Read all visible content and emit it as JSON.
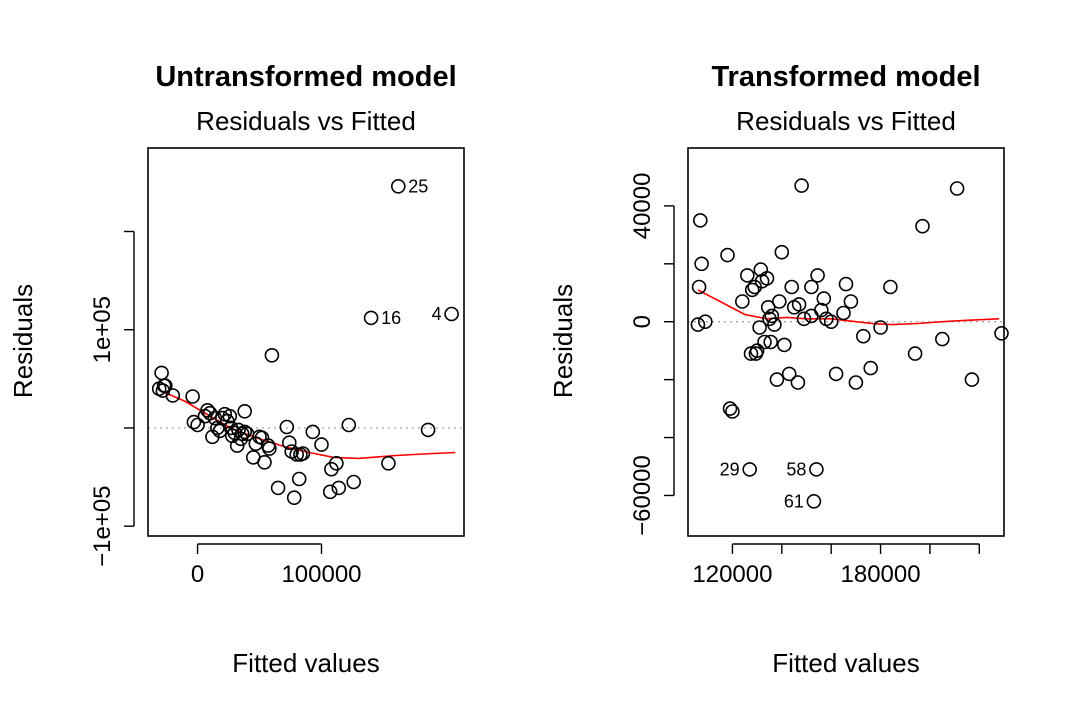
{
  "chart_data": [
    {
      "type": "scatter",
      "title": "Untransformed model",
      "subtitle": "Residuals vs Fitted",
      "xlabel": "Fitted values",
      "ylabel": "Residuals",
      "xlim": [
        -40000,
        215000
      ],
      "ylim": [
        -110000,
        285000
      ],
      "x_ticks": [
        0,
        100000
      ],
      "x_tick_labels": [
        "0",
        "100000"
      ],
      "y_ticks": [
        -100000,
        0,
        100000,
        200000
      ],
      "y_tick_labels": [
        "−1e+05",
        "",
        "1e+05",
        ""
      ],
      "zero_reference": 0,
      "smooth_color": "#ff0000",
      "smooth": {
        "x": [
          -30000,
          -10000,
          10000,
          30000,
          50000,
          70000,
          90000,
          110000,
          130000,
          160000,
          190000,
          208000
        ],
        "y": [
          38000,
          27000,
          12000,
          -2000,
          -11000,
          -19000,
          -25000,
          -30000,
          -31000,
          -28000,
          -26000,
          -25000
        ]
      },
      "points": {
        "x": [
          -31000,
          -29000,
          -28000,
          -27000,
          -26000,
          -20000,
          -4000,
          -3000,
          0,
          6000,
          8000,
          10000,
          12000,
          14000,
          16000,
          18000,
          20000,
          22000,
          24000,
          26000,
          27000,
          28000,
          30000,
          32000,
          33000,
          35000,
          36000,
          38000,
          38000,
          40000,
          45000,
          47000,
          50000,
          52000,
          54000,
          57000,
          58000,
          60000,
          65000,
          72000,
          74000,
          76000,
          78000,
          80000,
          82000,
          83000,
          85000,
          93000,
          100000,
          107000,
          108000,
          112000,
          114000,
          122000,
          126000,
          140000,
          154000,
          162000,
          186000,
          205000
        ],
        "y": [
          40000,
          56000,
          38000,
          43000,
          43000,
          33000,
          32000,
          6000,
          3000,
          12000,
          18000,
          15000,
          -9000,
          10000,
          0,
          -3000,
          10000,
          14000,
          7000,
          12000,
          0,
          -8000,
          -5000,
          -18000,
          -2000,
          -11000,
          -6000,
          17000,
          -4000,
          -6000,
          -30000,
          -16000,
          -9000,
          -10000,
          -35000,
          -18000,
          -21000,
          74000,
          -61000,
          1000,
          -15000,
          -24000,
          -71000,
          -27000,
          -52000,
          -27000,
          -26000,
          -4000,
          -17000,
          -65000,
          -42000,
          -36000,
          -61000,
          3000,
          -55000,
          112000,
          -36000,
          246000,
          -2000,
          116000
        ],
        "labels": [
          "",
          "",
          "",
          "",
          "",
          "",
          "",
          "",
          "",
          "",
          "",
          "",
          "",
          "",
          "",
          "",
          "",
          "",
          "",
          "",
          "",
          "",
          "",
          "",
          "",
          "",
          "",
          "",
          "",
          "",
          "",
          "",
          "",
          "",
          "",
          "",
          "",
          "",
          "",
          "",
          "",
          "",
          "",
          "",
          "",
          "",
          "",
          "",
          "",
          "",
          "",
          "",
          "",
          "",
          "",
          "16",
          "",
          "25",
          "",
          "4"
        ]
      }
    },
    {
      "type": "scatter",
      "title": "Transformed model",
      "subtitle": "Residuals vs Fitted",
      "xlabel": "Fitted values",
      "ylabel": "Residuals",
      "xlim": [
        102000,
        230000
      ],
      "ylim": [
        -74000,
        60000
      ],
      "x_ticks": [
        120000,
        140000,
        160000,
        180000,
        200000,
        220000
      ],
      "x_tick_labels": [
        "120000",
        "",
        "",
        "180000",
        "",
        ""
      ],
      "y_ticks": [
        -60000,
        -40000,
        -20000,
        0,
        20000,
        40000
      ],
      "y_tick_labels": [
        "−60000",
        "",
        "",
        "0",
        "",
        "40000"
      ],
      "zero_reference": 0,
      "smooth_color": "#ff0000",
      "smooth": {
        "x": [
          106000,
          115000,
          125000,
          134000,
          142000,
          150000,
          160000,
          170000,
          178000,
          185000,
          195000,
          205000,
          215000,
          228000
        ],
        "y": [
          11000,
          7000,
          2500,
          1000,
          1500,
          1000,
          1000,
          0,
          -700,
          -1000,
          -600,
          0,
          500,
          1000
        ]
      },
      "points": {
        "x": [
          106000,
          106500,
          107000,
          107500,
          109000,
          118000,
          119000,
          120000,
          124000,
          126000,
          127000,
          128000,
          129000,
          129500,
          130000,
          131000,
          131500,
          132000,
          133000,
          134000,
          134500,
          135000,
          135500,
          136000,
          137000,
          138000,
          139000,
          140000,
          141000,
          143000,
          144000,
          145000,
          146500,
          147000,
          148000,
          149000,
          152000,
          153000,
          154000,
          154500,
          156000,
          157000,
          160000,
          162000,
          165000,
          166000,
          168000,
          170000,
          173000,
          176000,
          180000,
          184000,
          194000,
          197000,
          205000,
          211000,
          217000,
          229000,
          127500,
          152000,
          158000
        ],
        "y": [
          -1000,
          12000,
          35000,
          20000,
          0,
          23000,
          -30000,
          -31000,
          7000,
          16000,
          -51000,
          11000,
          12000,
          -11000,
          -10000,
          -2000,
          18000,
          14000,
          -7000,
          15000,
          5000,
          1000,
          -7000,
          2000,
          -1000,
          -20000,
          7000,
          24000,
          -8000,
          -18000,
          12000,
          5000,
          -21000,
          6000,
          47000,
          1000,
          2000,
          -62000,
          -51000,
          16000,
          4000,
          8000,
          0,
          -18000,
          3000,
          13000,
          7000,
          -21000,
          -5000,
          -16000,
          -2000,
          12000,
          -11000,
          33000,
          -6000,
          46000,
          -20000,
          -4000,
          -11000,
          12000,
          1000
        ],
        "labels": [
          "",
          "",
          "",
          "",
          "",
          "",
          "",
          "",
          "",
          "",
          "29",
          "",
          "",
          "",
          "",
          "",
          "",
          "",
          "",
          "",
          "",
          "",
          "",
          "",
          "",
          "",
          "",
          "",
          "",
          "",
          "",
          "",
          "",
          "",
          "",
          "",
          "",
          "61",
          "58",
          "",
          "",
          "",
          "",
          "",
          "",
          "",
          "",
          "",
          "",
          "",
          "",
          "",
          "",
          "",
          "",
          "",
          "",
          "",
          "",
          "",
          ""
        ]
      }
    }
  ]
}
